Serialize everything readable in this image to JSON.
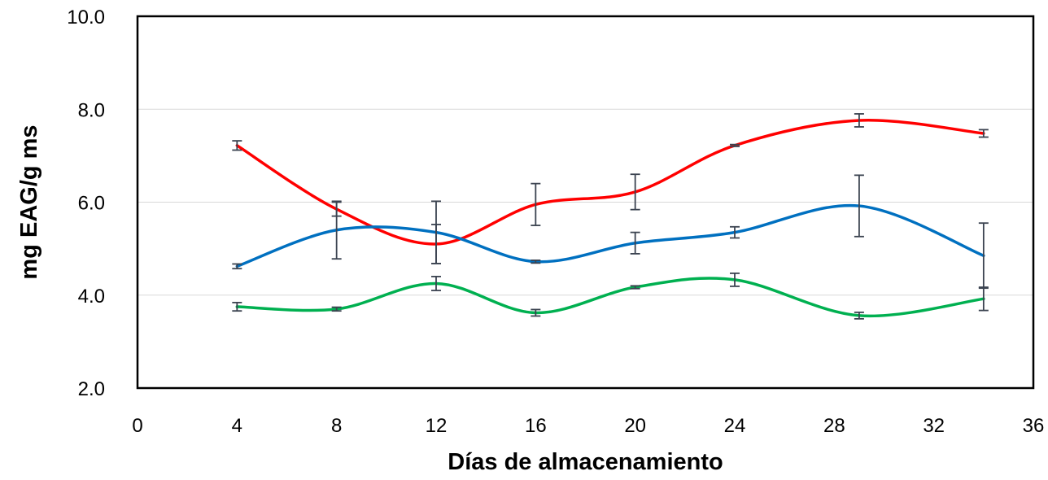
{
  "chart_data": {
    "type": "line",
    "title": "",
    "xlabel": "Días de almacenamiento",
    "ylabel": "mg EAG/g ms",
    "xlim": [
      0,
      36
    ],
    "ylim": [
      2.0,
      10.0
    ],
    "x_ticks": [
      0,
      4,
      8,
      12,
      16,
      20,
      24,
      28,
      32,
      36
    ],
    "x_tick_labels": [
      "0",
      "4",
      "8",
      "12",
      "16",
      "20",
      "24",
      "28",
      "32",
      "36"
    ],
    "y_ticks": [
      2.0,
      4.0,
      6.0,
      8.0,
      10.0
    ],
    "y_tick_labels": [
      "2.0",
      "4.0",
      "6.0",
      "8.0",
      "10.0"
    ],
    "grid": "horizontal",
    "smooth": true,
    "legend": "none",
    "series": [
      {
        "color": "#ff0000",
        "points": [
          {
            "x": 4,
            "y": 7.22,
            "err": 0.1
          },
          {
            "x": 8,
            "y": 5.85,
            "err": 0.15
          },
          {
            "x": 12,
            "y": 5.1,
            "err": 0.42
          },
          {
            "x": 16,
            "y": 5.95,
            "err": 0.45
          },
          {
            "x": 20,
            "y": 6.22,
            "err": 0.38
          },
          {
            "x": 24,
            "y": 7.22,
            "err": 0.02
          },
          {
            "x": 29,
            "y": 7.76,
            "err": 0.14
          },
          {
            "x": 34,
            "y": 7.48,
            "err": 0.08
          }
        ]
      },
      {
        "color": "#0070c0",
        "points": [
          {
            "x": 4,
            "y": 4.62,
            "err": 0.05
          },
          {
            "x": 8,
            "y": 5.4,
            "err": 0.62
          },
          {
            "x": 12,
            "y": 5.35,
            "err": 0.67
          },
          {
            "x": 16,
            "y": 4.72,
            "err": 0.03
          },
          {
            "x": 20,
            "y": 5.12,
            "err": 0.23
          },
          {
            "x": 24,
            "y": 5.35,
            "err": 0.12
          },
          {
            "x": 29,
            "y": 5.92,
            "err": 0.66
          },
          {
            "x": 34,
            "y": 4.85,
            "err": 0.7
          }
        ]
      },
      {
        "color": "#00b050",
        "points": [
          {
            "x": 4,
            "y": 3.75,
            "err": 0.09
          },
          {
            "x": 8,
            "y": 3.7,
            "err": 0.04
          },
          {
            "x": 12,
            "y": 4.25,
            "err": 0.15
          },
          {
            "x": 16,
            "y": 3.62,
            "err": 0.07
          },
          {
            "x": 20,
            "y": 4.17,
            "err": 0.03
          },
          {
            "x": 24,
            "y": 4.33,
            "err": 0.14
          },
          {
            "x": 29,
            "y": 3.56,
            "err": 0.07
          },
          {
            "x": 34,
            "y": 3.92,
            "err": 0.25
          }
        ]
      }
    ]
  }
}
